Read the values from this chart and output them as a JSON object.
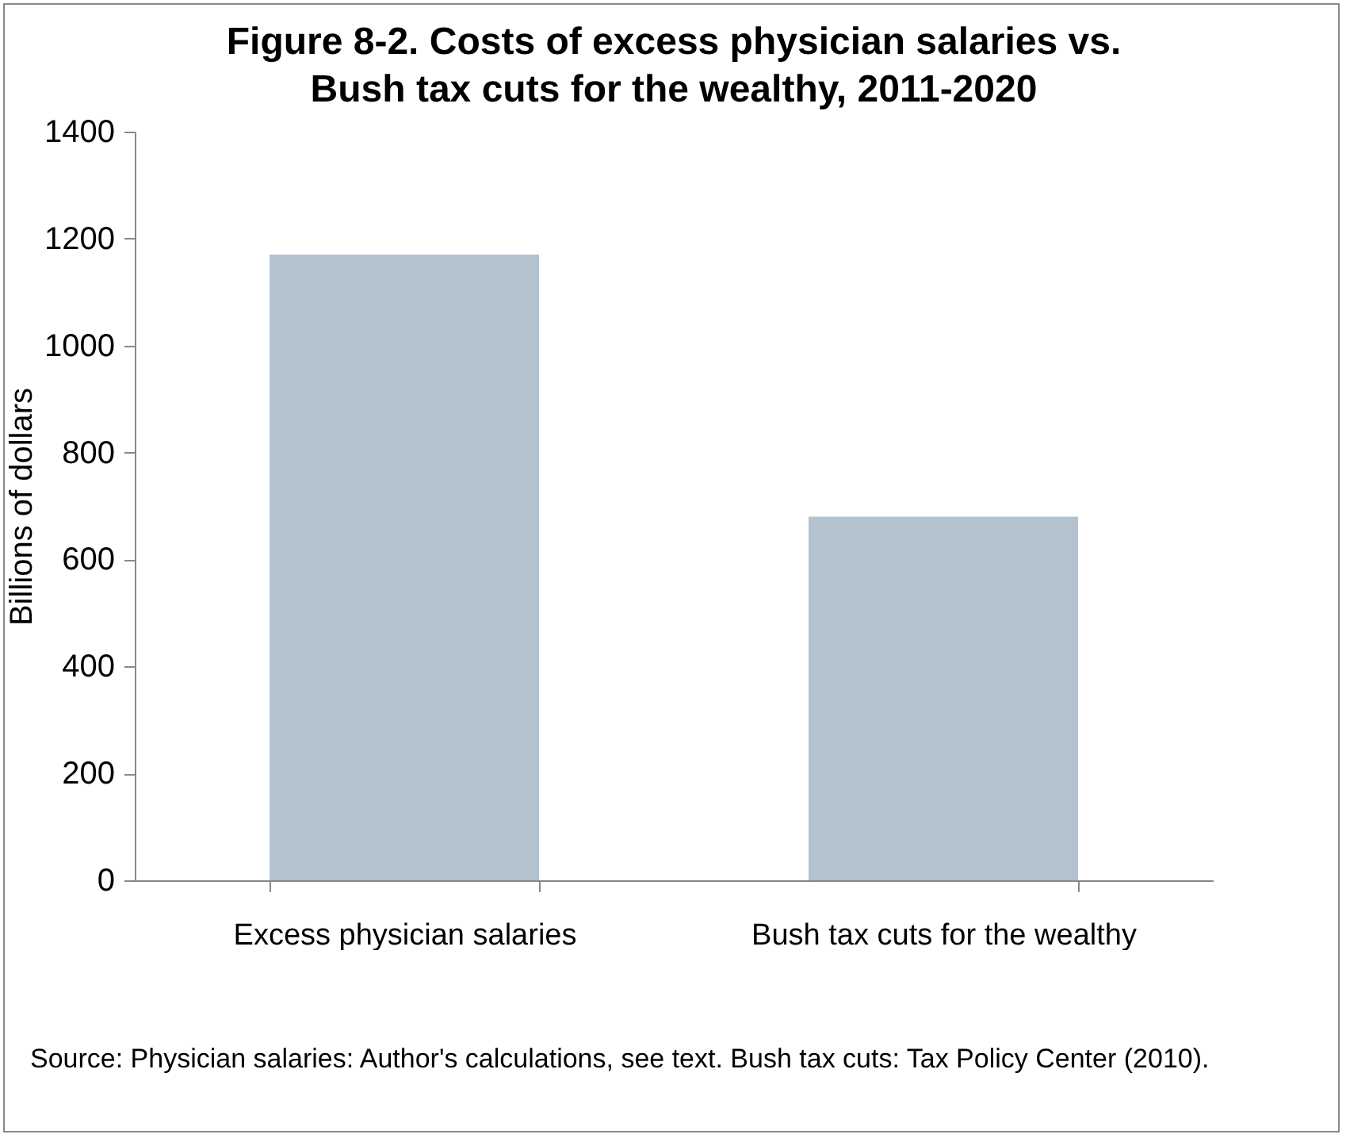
{
  "chart_data": {
    "type": "bar",
    "title": "Figure 8-2. Costs of excess physician salaries vs. Bush tax cuts for the wealthy, 2011-2020",
    "ylabel": "Billions of dollars",
    "categories": [
      "Excess physician salaries",
      "Bush tax cuts for the wealthy"
    ],
    "values": [
      1170,
      680
    ],
    "color": "#b4c2d0",
    "ylim": [
      0,
      1400
    ],
    "yticks": [
      0,
      200,
      400,
      600,
      800,
      1000,
      1200,
      1400
    ],
    "grid": false,
    "annotations": [
      "Source: Physician salaries: Author's calculations, see text. Bush tax cuts: Tax Policy Center (2010)."
    ]
  }
}
